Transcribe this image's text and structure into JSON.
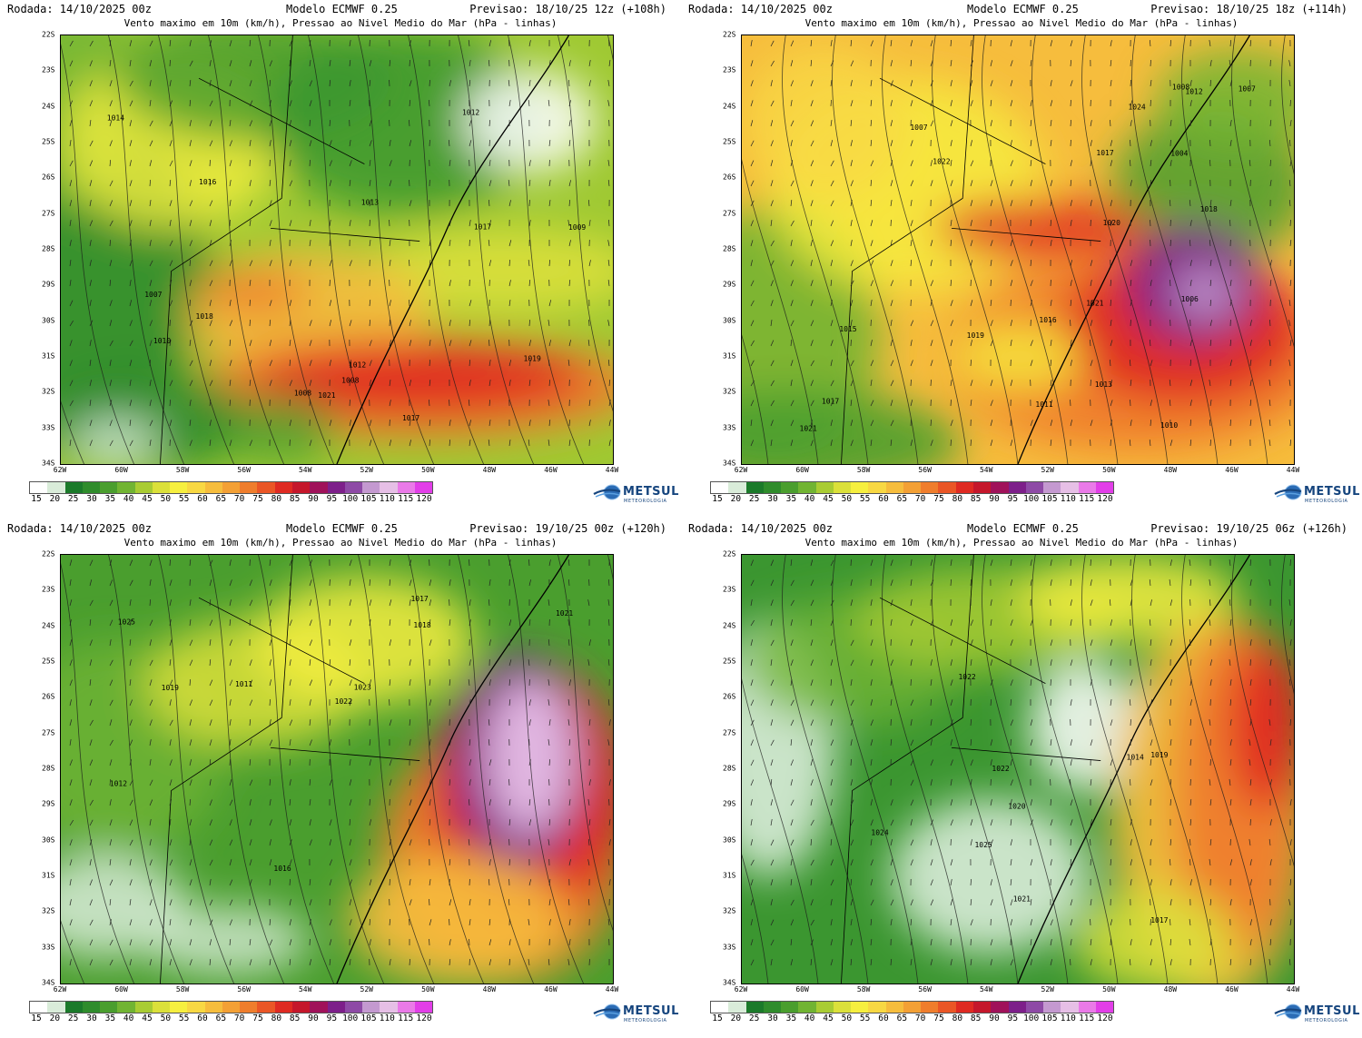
{
  "panels": [
    {
      "rodada": "Rodada: 14/10/2025 00z",
      "modelo": "Modelo ECMWF 0.25",
      "previsao": "Previsao: 18/10/25 12z (+108h)",
      "subtitle": "Vento maximo em 10m (km/h), Pressao ao Nivel Medio do Mar (hPa - linhas)",
      "isobar_labels": [
        "1008",
        "1012",
        "1013",
        "1014",
        "1009",
        "1010",
        "1008",
        "1007",
        "1017",
        "1016",
        "1018",
        "1019",
        "1021",
        "1017",
        "1012"
      ],
      "description_colors": {
        "dominant": "green-yellow",
        "max_zone": "red"
      }
    },
    {
      "rodada": "Rodada: 14/10/2025 00z",
      "modelo": "Modelo ECMWF 0.25",
      "previsao": "Previsao: 18/10/25 18z (+114h)",
      "subtitle": "Vento maximo em 10m (km/h), Pressao ao Nivel Medio do Mar (hPa - linhas)",
      "isobar_labels": [
        "1012",
        "1007",
        "1007",
        "1006",
        "1004",
        "1011",
        "1008",
        "1010",
        "1013",
        "1015",
        "1016",
        "1017",
        "1017",
        "1019",
        "1018",
        "1021",
        "1020",
        "1021",
        "1022",
        "1024"
      ],
      "description_colors": {
        "dominant": "orange-yellow",
        "max_zone": "purple"
      }
    },
    {
      "rodada": "Rodada: 14/10/2025 00z",
      "modelo": "Modelo ECMWF 0.25",
      "previsao": "Previsao: 19/10/25 00z (+120h)",
      "subtitle": "Vento maximo em 10m (km/h), Pressao ao Nivel Medio do Mar (hPa - linhas)",
      "isobar_labels": [
        "1011",
        "1012",
        "1016",
        "1018",
        "1017",
        "1021",
        "1019",
        "1022",
        "1023",
        "1025"
      ],
      "description_colors": {
        "dominant": "green",
        "max_zone": "purple-pink"
      }
    },
    {
      "rodada": "Rodada: 14/10/2025 00z",
      "modelo": "Modelo ECMWF 0.25",
      "previsao": "Previsao: 19/10/25 06z (+126h)",
      "subtitle": "Vento maximo em 10m (km/h), Pressao ao Nivel Medio do Mar (hPa - linhas)",
      "isobar_labels": [
        "1014",
        "1017",
        "1019",
        "1020",
        "1021",
        "1022",
        "1022",
        "1024",
        "1025"
      ],
      "description_colors": {
        "dominant": "green-white",
        "max_zone": "orange-red"
      }
    }
  ],
  "latitudes": [
    "22S",
    "23S",
    "24S",
    "25S",
    "26S",
    "27S",
    "28S",
    "29S",
    "30S",
    "31S",
    "32S",
    "33S",
    "34S"
  ],
  "longitudes": [
    "62W",
    "60W",
    "58W",
    "56W",
    "54W",
    "52W",
    "50W",
    "48W",
    "46W",
    "44W"
  ],
  "colorbar_ticks": [
    "15",
    "20",
    "25",
    "30",
    "35",
    "40",
    "45",
    "50",
    "55",
    "60",
    "65",
    "70",
    "75",
    "80",
    "85",
    "90",
    "95",
    "100",
    "105",
    "110",
    "115",
    "120"
  ],
  "colorbar_colors": [
    "#ffffff",
    "#d9ecd9",
    "#1b7a2a",
    "#2f8c2c",
    "#4a9e2e",
    "#71b432",
    "#a9cc33",
    "#dbe03a",
    "#f6ef3f",
    "#f8d843",
    "#f6bd3d",
    "#f3a035",
    "#ef7d2c",
    "#ea5626",
    "#df2a22",
    "#c5172b",
    "#a0125a",
    "#7d1f8a",
    "#8e4aa6",
    "#c499d0",
    "#e6bfe6",
    "#ea7ae8",
    "#e23ee8"
  ],
  "logo": {
    "name": "METSUL",
    "sub": "METEOROLOGIA",
    "color": "#16457e"
  }
}
